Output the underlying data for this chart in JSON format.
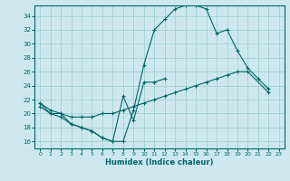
{
  "xlabel": "Humidex (Indice chaleur)",
  "bg_color": "#cce8ee",
  "line_color": "#006666",
  "grid_color": "#99cccc",
  "xlim": [
    -0.5,
    23.5
  ],
  "ylim": [
    15.0,
    35.5
  ],
  "yticks": [
    16,
    18,
    20,
    22,
    24,
    26,
    28,
    30,
    32,
    34
  ],
  "xticks": [
    0,
    1,
    2,
    3,
    4,
    5,
    6,
    7,
    8,
    9,
    10,
    11,
    12,
    13,
    14,
    15,
    16,
    17,
    18,
    19,
    20,
    21,
    22,
    23
  ],
  "line1_y": [
    21.5,
    20.5,
    20.0,
    18.5,
    18.0,
    17.5,
    16.5,
    16.0,
    16.0,
    20.5,
    27.0,
    32.0,
    33.5,
    35.0,
    35.5,
    35.5,
    35.0,
    31.5,
    32.0,
    29.0,
    26.5,
    25.0,
    23.5,
    null
  ],
  "line2_y": [
    21.5,
    20.0,
    19.5,
    18.5,
    18.0,
    17.5,
    16.5,
    16.0,
    22.5,
    19.0,
    24.5,
    24.5,
    25.0,
    null,
    null,
    null,
    null,
    null,
    null,
    null,
    null,
    null,
    null,
    null
  ],
  "line3_y": [
    21.0,
    20.0,
    20.0,
    19.5,
    19.5,
    19.5,
    20.0,
    20.0,
    20.5,
    21.0,
    21.5,
    22.0,
    22.5,
    23.0,
    23.5,
    24.0,
    24.5,
    25.0,
    25.5,
    26.0,
    26.0,
    null,
    23.0,
    null
  ]
}
